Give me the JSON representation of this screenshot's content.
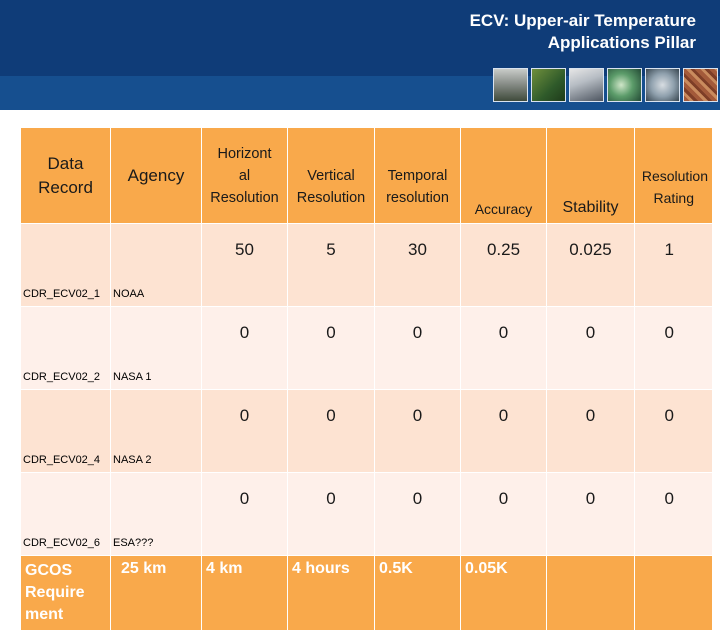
{
  "slide": {
    "title_line1": "ECV: Upper-air Temperature",
    "title_line2": "Applications Pillar"
  },
  "thumbnails": [
    {
      "name": "city-skyline-image"
    },
    {
      "name": "landscape-image"
    },
    {
      "name": "clouds-image"
    },
    {
      "name": "hurricane-image"
    },
    {
      "name": "storm-image"
    },
    {
      "name": "cracked-earth-image"
    },
    {
      "name": "snow-ice-image"
    }
  ],
  "table": {
    "headers": {
      "data_record_l1": "Data",
      "data_record_l2": "Record",
      "agency": "Agency",
      "horiz_l1": "Horizont",
      "horiz_l2": "al",
      "horiz_l3": "Resolution",
      "vertical_l1": "Vertical",
      "vertical_l2": "Resolution",
      "temporal_l1": "Temporal",
      "temporal_l2": "resolution",
      "accuracy": "Accuracy",
      "stability": "Stability",
      "rating_l1": "Resolution",
      "rating_l2": "Rating"
    },
    "rows": [
      {
        "record": "CDR_ECV02_1",
        "agency": "NOAA",
        "horizontal": "50",
        "vertical": "5",
        "temporal": "30",
        "accuracy": "0.25",
        "stability": "0.025",
        "rating": "1"
      },
      {
        "record": "CDR_ECV02_2",
        "agency": "NASA 1",
        "horizontal": "0",
        "vertical": "0",
        "temporal": "0",
        "accuracy": "0",
        "stability": "0",
        "rating": "0"
      },
      {
        "record": "CDR_ECV02_4",
        "agency": "NASA 2",
        "horizontal": "0",
        "vertical": "0",
        "temporal": "0",
        "accuracy": "0",
        "stability": "0",
        "rating": "0"
      },
      {
        "record": "CDR_ECV02_6",
        "agency": "ESA???",
        "horizontal": "0",
        "vertical": "0",
        "temporal": "0",
        "accuracy": "0",
        "stability": "0",
        "rating": "0"
      }
    ],
    "gcos": {
      "label_l1": "GCOS",
      "label_l2": "Require",
      "label_l3": "ment",
      "agency_value": "25 km",
      "horizontal": "4 km",
      "vertical": "4 hours",
      "temporal": "0.5K",
      "accuracy": "0.05K"
    }
  },
  "colors": {
    "header_bg": "#0f3c78",
    "table_header": "#f9a94b",
    "row_odd": "#fde3d2",
    "row_even": "#fef0ea"
  }
}
